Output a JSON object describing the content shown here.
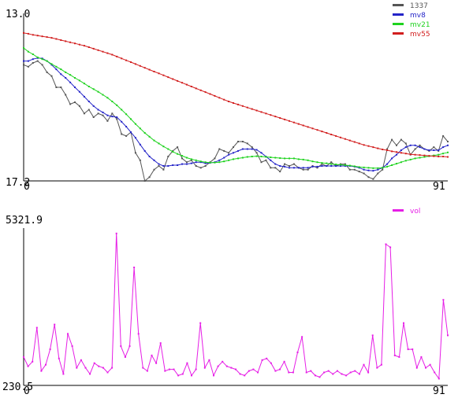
{
  "chart_data": [
    {
      "type": "line",
      "x_range": [
        0,
        91
      ],
      "ylim": [
        13.0,
        17.2
      ],
      "x_tick_labels": [
        "0",
        "91"
      ],
      "y_tick_labels": [
        "13.0",
        "17.2"
      ],
      "grid": false,
      "legend_position": "top-right",
      "series": [
        {
          "name": "1337",
          "color": "#555555",
          "values": [
            16.1,
            16.05,
            16.15,
            16.2,
            16.1,
            15.9,
            15.8,
            15.5,
            15.5,
            15.3,
            15.05,
            15.1,
            15.0,
            14.8,
            14.9,
            14.7,
            14.8,
            14.75,
            14.6,
            14.8,
            14.65,
            14.25,
            14.2,
            14.3,
            13.75,
            13.55,
            13.0,
            13.1,
            13.3,
            13.4,
            13.3,
            13.65,
            13.8,
            13.9,
            13.6,
            13.5,
            13.55,
            13.4,
            13.35,
            13.4,
            13.5,
            13.6,
            13.85,
            13.8,
            13.75,
            13.9,
            14.05,
            14.05,
            14.0,
            13.9,
            13.75,
            13.5,
            13.55,
            13.35,
            13.35,
            13.25,
            13.45,
            13.4,
            13.45,
            13.35,
            13.3,
            13.3,
            13.4,
            13.35,
            13.45,
            13.4,
            13.5,
            13.4,
            13.45,
            13.45,
            13.3,
            13.3,
            13.25,
            13.2,
            13.1,
            13.05,
            13.2,
            13.3,
            13.85,
            14.1,
            13.95,
            14.1,
            14.0,
            13.7,
            13.85,
            13.95,
            13.85,
            13.8,
            13.9,
            13.8,
            14.2,
            14.05
          ]
        },
        {
          "name": "mv8",
          "color": "#2424c8",
          "values": [
            16.2,
            16.2,
            16.25,
            16.28,
            16.27,
            16.2,
            16.1,
            15.98,
            15.85,
            15.75,
            15.63,
            15.5,
            15.38,
            15.25,
            15.12,
            15.0,
            14.9,
            14.83,
            14.75,
            14.72,
            14.7,
            14.58,
            14.45,
            14.3,
            14.15,
            13.97,
            13.8,
            13.65,
            13.55,
            13.45,
            13.4,
            13.4,
            13.42,
            13.42,
            13.45,
            13.45,
            13.47,
            13.5,
            13.5,
            13.47,
            13.48,
            13.5,
            13.55,
            13.62,
            13.7,
            13.75,
            13.8,
            13.85,
            13.85,
            13.85,
            13.83,
            13.75,
            13.65,
            13.55,
            13.45,
            13.4,
            13.38,
            13.35,
            13.35,
            13.35,
            13.35,
            13.35,
            13.38,
            13.38,
            13.4,
            13.4,
            13.4,
            13.4,
            13.4,
            13.4,
            13.4,
            13.38,
            13.35,
            13.3,
            13.28,
            13.27,
            13.3,
            13.35,
            13.45,
            13.6,
            13.7,
            13.82,
            13.9,
            13.95,
            13.95,
            13.9,
            13.85,
            13.82,
            13.82,
            13.82,
            13.9,
            13.95
          ]
        },
        {
          "name": "mv21",
          "color": "#1ed21e",
          "values": [
            16.55,
            16.45,
            16.38,
            16.3,
            16.25,
            16.2,
            16.12,
            16.05,
            15.98,
            15.9,
            15.83,
            15.75,
            15.68,
            15.6,
            15.52,
            15.45,
            15.38,
            15.3,
            15.22,
            15.12,
            15.02,
            14.9,
            14.78,
            14.65,
            14.52,
            14.4,
            14.28,
            14.18,
            14.08,
            14.0,
            13.92,
            13.85,
            13.78,
            13.72,
            13.67,
            13.62,
            13.58,
            13.55,
            13.52,
            13.5,
            13.49,
            13.49,
            13.5,
            13.52,
            13.55,
            13.58,
            13.6,
            13.62,
            13.64,
            13.65,
            13.66,
            13.65,
            13.64,
            13.63,
            13.62,
            13.61,
            13.6,
            13.6,
            13.6,
            13.58,
            13.57,
            13.55,
            13.52,
            13.5,
            13.48,
            13.47,
            13.45,
            13.44,
            13.43,
            13.42,
            13.41,
            13.39,
            13.37,
            13.36,
            13.35,
            13.34,
            13.34,
            13.35,
            13.38,
            13.42,
            13.46,
            13.5,
            13.54,
            13.57,
            13.6,
            13.62,
            13.64,
            13.66,
            13.68,
            13.7,
            13.73,
            13.76
          ]
        },
        {
          "name": "mv55",
          "color": "#d21e1e",
          "values": [
            16.95,
            16.93,
            16.9,
            16.88,
            16.86,
            16.84,
            16.82,
            16.79,
            16.76,
            16.73,
            16.7,
            16.67,
            16.64,
            16.61,
            16.57,
            16.53,
            16.49,
            16.45,
            16.41,
            16.37,
            16.32,
            16.27,
            16.22,
            16.17,
            16.12,
            16.07,
            16.02,
            15.97,
            15.92,
            15.87,
            15.82,
            15.77,
            15.72,
            15.67,
            15.62,
            15.57,
            15.52,
            15.47,
            15.42,
            15.37,
            15.32,
            15.27,
            15.22,
            15.17,
            15.12,
            15.08,
            15.04,
            15.0,
            14.96,
            14.92,
            14.88,
            14.84,
            14.8,
            14.76,
            14.72,
            14.68,
            14.64,
            14.6,
            14.56,
            14.52,
            14.48,
            14.44,
            14.4,
            14.36,
            14.32,
            14.28,
            14.24,
            14.2,
            14.16,
            14.12,
            14.08,
            14.04,
            14.0,
            13.96,
            13.93,
            13.9,
            13.87,
            13.84,
            13.82,
            13.79,
            13.77,
            13.75,
            13.73,
            13.71,
            13.7,
            13.69,
            13.68,
            13.67,
            13.66,
            13.65,
            13.65,
            13.64
          ]
        }
      ]
    },
    {
      "type": "line",
      "x_range": [
        0,
        91
      ],
      "ylim": [
        230.5,
        5321.9
      ],
      "x_tick_labels": [
        "0",
        "91"
      ],
      "y_tick_labels": [
        "5321.9",
        "230.5"
      ],
      "grid": false,
      "legend_position": "top-right",
      "series": [
        {
          "name": "vol",
          "color": "#e61ee6",
          "values": [
            1150,
            850,
            1000,
            2100,
            700,
            900,
            1400,
            2200,
            1100,
            600,
            1900,
            1500,
            800,
            1050,
            800,
            600,
            950,
            850,
            800,
            650,
            800,
            5150,
            1500,
            1150,
            1500,
            4050,
            1900,
            800,
            700,
            1200,
            950,
            1600,
            700,
            750,
            750,
            550,
            600,
            950,
            550,
            750,
            2250,
            800,
            1050,
            550,
            850,
            1000,
            850,
            800,
            750,
            600,
            550,
            700,
            750,
            650,
            1050,
            1100,
            950,
            700,
            750,
            1000,
            650,
            650,
            1300,
            1800,
            650,
            700,
            550,
            500,
            650,
            700,
            600,
            700,
            600,
            550,
            650,
            700,
            600,
            900,
            650,
            1850,
            800,
            900,
            4800,
            4700,
            1200,
            1150,
            2250,
            1400,
            1400,
            800,
            1150,
            800,
            900,
            650,
            450,
            3000,
            1850
          ]
        }
      ]
    }
  ],
  "legend_colors": {
    "1337": "#555555",
    "mv8": "#2424c8",
    "mv21": "#1ed21e",
    "mv55": "#d21e1e",
    "vol": "#e61ee6"
  }
}
